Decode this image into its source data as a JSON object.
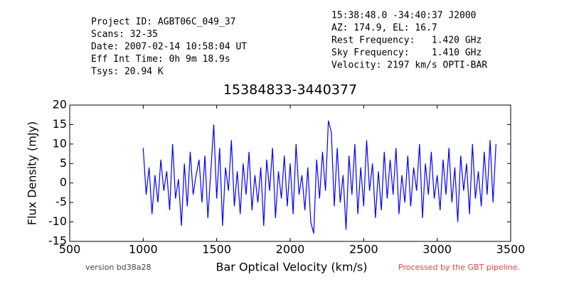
{
  "header": {
    "left": [
      "Project ID: AGBT06C_049_37",
      "Scans: 32-35",
      "Date: 2007-02-14 10:58:04 UT",
      "Eff Int Time: 0h 9m 18.9s",
      "Tsys: 20.94 K"
    ],
    "right": [
      "15:38:48.0 -34:40:37 J2000",
      "AZ: 174.9, EL: 16.7",
      "Rest Frequency:   1.420 GHz",
      "Sky Frequency:    1.410 GHz",
      "Velocity: 2197 km/s OPTI-BAR"
    ]
  },
  "footer": {
    "version": "version bd38a28",
    "pipeline": "Processed by the GBT pipeline."
  },
  "chart_data": {
    "type": "line",
    "title": "15384833-3440377",
    "x_label": "Bar Optical Velocity (km/s)",
    "y_label": "Flux Density (mJy)",
    "x": [
      1000,
      1020,
      1040,
      1060,
      1080,
      1100,
      1120,
      1140,
      1160,
      1180,
      1200,
      1220,
      1240,
      1260,
      1280,
      1300,
      1320,
      1340,
      1360,
      1380,
      1400,
      1420,
      1440,
      1460,
      1480,
      1500,
      1520,
      1540,
      1560,
      1580,
      1600,
      1620,
      1640,
      1660,
      1680,
      1700,
      1720,
      1740,
      1760,
      1780,
      1800,
      1820,
      1840,
      1860,
      1880,
      1900,
      1920,
      1940,
      1960,
      1980,
      2000,
      2020,
      2040,
      2060,
      2080,
      2100,
      2120,
      2140,
      2160,
      2180,
      2200,
      2220,
      2240,
      2260,
      2280,
      2300,
      2320,
      2340,
      2360,
      2380,
      2400,
      2420,
      2440,
      2460,
      2480,
      2500,
      2520,
      2540,
      2560,
      2580,
      2600,
      2620,
      2640,
      2660,
      2680,
      2700,
      2720,
      2740,
      2760,
      2780,
      2800,
      2820,
      2840,
      2860,
      2880,
      2900,
      2920,
      2940,
      2960,
      2980,
      3000,
      3020,
      3040,
      3060,
      3080,
      3100,
      3120,
      3140,
      3160,
      3180,
      3200,
      3220,
      3240,
      3260,
      3280,
      3300,
      3320,
      3340,
      3360,
      3380,
      3400
    ],
    "series": [
      {
        "name": "spectrum",
        "color": "#0000ff",
        "values": [
          9,
          -3,
          4,
          -8,
          2,
          -5,
          6,
          -2,
          3,
          -7,
          10,
          -4,
          1,
          -11,
          5,
          -6,
          8,
          -3,
          2,
          6,
          -5,
          7,
          -9,
          3,
          15,
          -4,
          9,
          -11,
          4,
          -2,
          11,
          -6,
          3,
          -8,
          5,
          -3,
          8,
          -7,
          2,
          -5,
          4,
          -11,
          6,
          -2,
          9,
          -9,
          3,
          -4,
          7,
          -6,
          5,
          -8,
          10,
          -3,
          2,
          -7,
          4,
          -10,
          -13,
          6,
          -4,
          8,
          -2,
          16,
          13,
          -6,
          9,
          -5,
          2,
          -12,
          7,
          -3,
          10,
          -8,
          4,
          -6,
          11,
          -2,
          5,
          -9,
          3,
          -7,
          8,
          -4,
          6,
          -3,
          9,
          -8,
          2,
          -5,
          7,
          -6,
          4,
          -2,
          10,
          -9,
          5,
          -3,
          8,
          -4,
          2,
          -7,
          6,
          -3,
          9,
          -5,
          4,
          -10,
          7,
          -2,
          5,
          -8,
          10,
          -4,
          3,
          -6,
          8,
          -3,
          11,
          -5,
          10
        ]
      }
    ],
    "xlim": [
      500,
      3500
    ],
    "ylim": [
      -15,
      20
    ],
    "xticks": [
      500,
      1000,
      1500,
      2000,
      2500,
      3000,
      3500
    ],
    "yticks": [
      -15,
      -10,
      -5,
      0,
      5,
      10,
      15,
      20
    ]
  }
}
